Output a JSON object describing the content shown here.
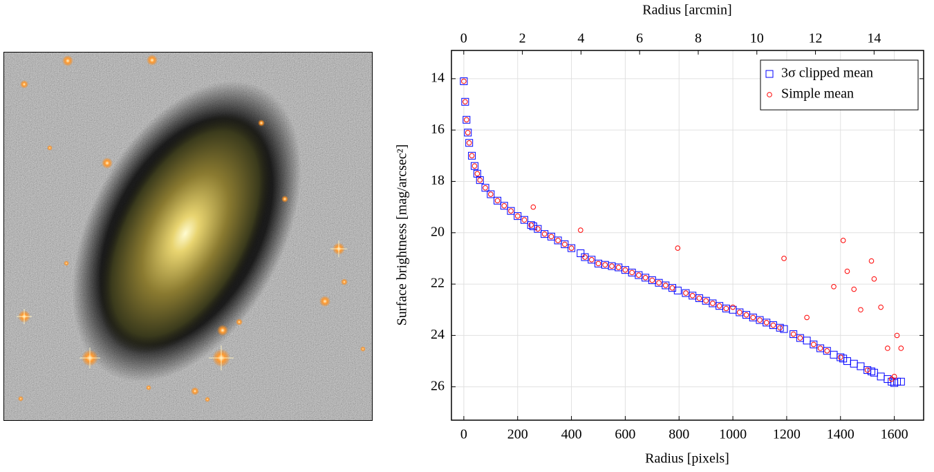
{
  "chart_data": {
    "type": "scatter",
    "xlabel": "Radius [pixels]",
    "x2label": "Radius [arcmin]",
    "ylabel": "Surface brightness [mag/arcsec²]",
    "x": [
      0,
      5,
      10,
      15,
      20,
      30,
      40,
      50,
      60,
      80,
      100,
      125,
      150,
      175,
      200,
      225,
      250,
      258,
      275,
      300,
      325,
      350,
      375,
      400,
      434,
      450,
      475,
      500,
      525,
      550,
      575,
      600,
      625,
      650,
      675,
      700,
      725,
      750,
      775,
      795,
      825,
      850,
      875,
      900,
      925,
      950,
      975,
      1000,
      1025,
      1050,
      1075,
      1100,
      1125,
      1150,
      1175,
      1190,
      1225,
      1250,
      1275,
      1300,
      1325,
      1350,
      1375,
      1400,
      1410,
      1425,
      1450,
      1475,
      1500,
      1515,
      1525,
      1550,
      1575,
      1590,
      1600,
      1610,
      1625
    ],
    "series": [
      {
        "name": "3σ clipped mean",
        "color": "#0000ff",
        "marker": "square",
        "values": [
          14.1,
          14.9,
          15.6,
          16.1,
          16.5,
          17.0,
          17.4,
          17.7,
          17.95,
          18.25,
          18.5,
          18.75,
          18.95,
          19.15,
          19.35,
          19.5,
          19.7,
          19.75,
          19.85,
          20.05,
          20.15,
          20.3,
          20.45,
          20.6,
          20.8,
          20.95,
          21.05,
          21.2,
          21.25,
          21.3,
          21.35,
          21.45,
          21.55,
          21.65,
          21.75,
          21.85,
          21.95,
          22.05,
          22.15,
          22.25,
          22.35,
          22.45,
          22.55,
          22.65,
          22.75,
          22.85,
          22.95,
          23.0,
          23.1,
          23.2,
          23.3,
          23.4,
          23.5,
          23.6,
          23.7,
          23.75,
          23.95,
          24.1,
          24.2,
          24.35,
          24.5,
          24.6,
          24.75,
          24.85,
          24.9,
          25.0,
          25.1,
          25.2,
          25.35,
          25.4,
          25.45,
          25.6,
          25.7,
          25.8,
          25.85,
          25.8,
          25.8
        ]
      },
      {
        "name": "Simple mean",
        "color": "#ff0000",
        "marker": "circle",
        "values": [
          14.1,
          14.9,
          15.6,
          16.1,
          16.5,
          17.0,
          17.4,
          17.7,
          17.95,
          18.25,
          18.5,
          18.75,
          18.95,
          19.15,
          19.35,
          19.5,
          19.7,
          19.0,
          19.85,
          20.05,
          20.15,
          20.3,
          20.45,
          20.6,
          19.9,
          20.95,
          21.05,
          21.2,
          21.25,
          21.3,
          21.35,
          21.45,
          21.55,
          21.65,
          21.75,
          21.85,
          21.95,
          22.05,
          22.15,
          20.6,
          22.35,
          22.45,
          22.55,
          22.65,
          22.75,
          22.85,
          22.95,
          22.9,
          23.1,
          23.2,
          23.3,
          23.4,
          23.5,
          23.6,
          23.7,
          21.0,
          23.95,
          24.1,
          23.3,
          24.35,
          24.5,
          24.6,
          22.1,
          24.85,
          20.3,
          21.5,
          22.2,
          23.0,
          25.35,
          21.1,
          21.8,
          22.9,
          24.5,
          25.7,
          25.6,
          24.0,
          24.5
        ]
      }
    ],
    "xlim": [
      -46,
      1709
    ],
    "xticks": [
      0,
      200,
      400,
      600,
      800,
      1000,
      1200,
      1400,
      1600
    ],
    "x2lim": [
      -0.42,
      15.69
    ],
    "x2ticks": [
      0,
      2,
      4,
      6,
      8,
      10,
      12,
      14
    ],
    "ylim": [
      27.3,
      12.9
    ],
    "yticks": [
      14,
      16,
      18,
      20,
      22,
      24,
      26
    ],
    "grid": true,
    "legend": "upper right"
  }
}
